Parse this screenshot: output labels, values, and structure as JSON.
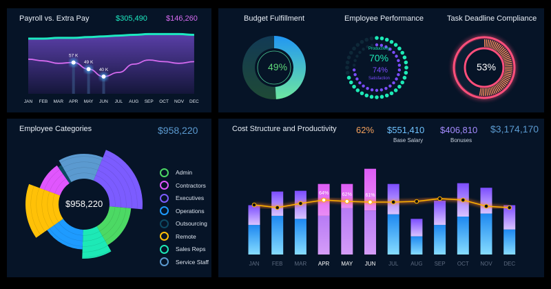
{
  "payroll": {
    "title": "Payroll vs. Extra Pay",
    "total_payroll": "$305,490",
    "total_extra_pay": "$146,260",
    "months": [
      "JAN",
      "FEB",
      "MAR",
      "APR",
      "MAY",
      "JUN",
      "JUL",
      "AUG",
      "SEP",
      "OCT",
      "NOV",
      "DEC"
    ],
    "payroll_series": [
      100,
      100,
      101,
      101,
      102,
      103,
      104,
      105,
      106,
      106,
      106,
      105
    ],
    "extra_pay_k": [
      61,
      59,
      56,
      57,
      49,
      40,
      45,
      55,
      60,
      58,
      56,
      58
    ],
    "highlight_labels": [
      {
        "month": "APR",
        "label": "57 K"
      },
      {
        "month": "MAY",
        "label": "49 K"
      },
      {
        "month": "JUN",
        "label": "40 K"
      }
    ],
    "colors": {
      "payroll": "#1de9c0",
      "extra": "#d66bf0"
    }
  },
  "kpis": {
    "budget": {
      "title": "Budget Fulfillment",
      "value": "49%",
      "fraction": 0.49,
      "color": "#2196f3"
    },
    "performance": {
      "title": "Employee Performance",
      "productivity_label": "Productivity",
      "productivity_value": "70%",
      "productivity": 0.7,
      "satisfaction_label": "Satisfaction",
      "satisfaction_value": "74%",
      "satisfaction": 0.74,
      "colors": {
        "productivity": "#1de9b6",
        "satisfaction": "#7c4dff"
      }
    },
    "deadline": {
      "title": "Task Deadline Compliance",
      "value": "53%",
      "fraction": 0.53,
      "color": "#ff4f7b"
    }
  },
  "categories": {
    "title": "Employee Categories",
    "total": "$958,220",
    "center_value": "$958,220",
    "items": [
      {
        "label": "Admin",
        "color": "#4cd964"
      },
      {
        "label": "Contractors",
        "color": "#e056fd"
      },
      {
        "label": "Executives",
        "color": "#7c5cff"
      },
      {
        "label": "Operations",
        "color": "#1e9bff"
      },
      {
        "label": "Outsourcing",
        "color": "#0d4a63"
      },
      {
        "label": "Remote",
        "color": "#ffc107"
      },
      {
        "label": "Sales Reps",
        "color": "#1de9b6"
      },
      {
        "label": "Service Staff",
        "color": "#5b9ad0"
      }
    ]
  },
  "cost": {
    "title": "Cost Structure and Productivity",
    "productivity": "62%",
    "base_salary_value": "$551,410",
    "base_salary_label": "Base Salary",
    "bonuses_value": "$406,810",
    "bonuses_label": "Bonuses",
    "total": "$3,174,170",
    "highlight_months": [
      "APR",
      "MAY",
      "JUN"
    ]
  },
  "chart_data": [
    {
      "type": "area",
      "title": "Payroll vs. Extra Pay",
      "categories": [
        "JAN",
        "FEB",
        "MAR",
        "APR",
        "MAY",
        "JUN",
        "JUL",
        "AUG",
        "SEP",
        "OCT",
        "NOV",
        "DEC"
      ],
      "series": [
        {
          "name": "Extra Pay",
          "values": [
            61,
            59,
            56,
            57,
            49,
            40,
            45,
            55,
            60,
            58,
            56,
            58
          ]
        }
      ],
      "data_labels": {
        "APR": "57 K",
        "MAY": "49 K",
        "JUN": "40 K"
      }
    },
    {
      "type": "bar",
      "title": "Cost Structure and Productivity",
      "categories": [
        "JAN",
        "FEB",
        "MAR",
        "APR",
        "MAY",
        "JUN",
        "JUL",
        "AUG",
        "SEP",
        "OCT",
        "NOV",
        "DEC"
      ],
      "series": [
        {
          "name": "Base Salary",
          "values": [
            39,
            51,
            47,
            51,
            61,
            58,
            53,
            24,
            39,
            50,
            54,
            33
          ]
        },
        {
          "name": "Bonuses",
          "values": [
            26,
            32,
            37,
            42,
            32,
            55,
            40,
            23,
            32,
            44,
            34,
            32
          ]
        },
        {
          "name": "Productivity",
          "values": [
            57,
            53,
            59,
            64,
            62,
            61,
            61,
            62,
            66,
            64,
            55,
            53
          ]
        }
      ],
      "data_labels": {
        "APR": "64%",
        "MAY": "62%",
        "JUN": "61%"
      }
    },
    {
      "type": "pie",
      "title": "Employee Categories",
      "slices": [
        {
          "label": "Service Staff",
          "start_deg": -30,
          "end_deg": 22,
          "magnitude": 0.6
        },
        {
          "label": "Executives",
          "start_deg": 22,
          "end_deg": 95,
          "magnitude": 1.0
        },
        {
          "label": "Admin",
          "start_deg": 95,
          "end_deg": 150,
          "magnitude": 0.45
        },
        {
          "label": "Sales Reps",
          "start_deg": 150,
          "end_deg": 182,
          "magnitude": 0.8
        },
        {
          "label": "Operations",
          "start_deg": 182,
          "end_deg": 235,
          "magnitude": 0.35
        },
        {
          "label": "Remote",
          "start_deg": 235,
          "end_deg": 290,
          "magnitude": 1.0
        },
        {
          "label": "Contractors",
          "start_deg": 290,
          "end_deg": 325,
          "magnitude": 0.45
        },
        {
          "label": "Outsourcing",
          "start_deg": 325,
          "end_deg": 330,
          "magnitude": 0.35
        }
      ]
    }
  ]
}
